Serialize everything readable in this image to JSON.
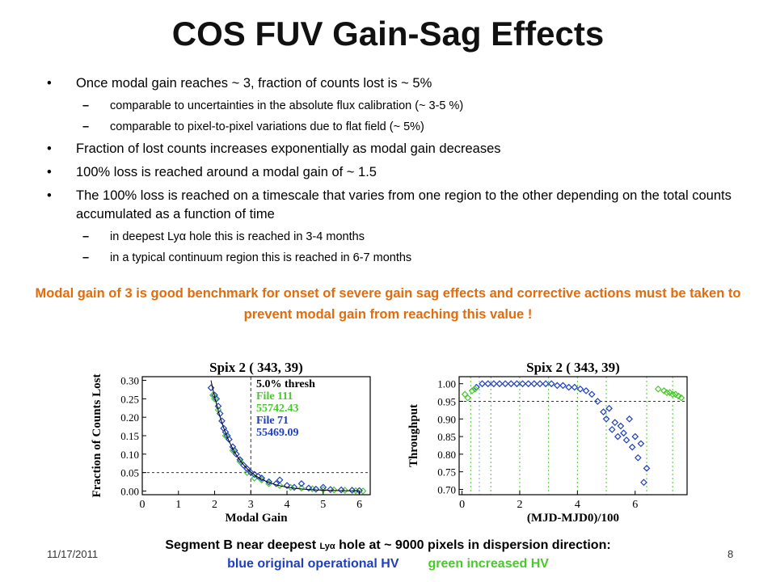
{
  "slide": {
    "title": "COS FUV Gain-Sag Effects",
    "date": "11/17/2011",
    "page": "8",
    "bullets": [
      {
        "text": "Once modal gain reaches ~ 3, fraction of counts lost is ~ 5%",
        "level": 1
      },
      {
        "text": "comparable to uncertainties in the absolute flux calibration (~ 3-5 %)",
        "level": 2
      },
      {
        "text": "comparable to pixel-to-pixel variations due to flat field (~ 5%)",
        "level": 2
      },
      {
        "text": "Fraction of lost counts increases exponentially as modal gain decreases",
        "level": 1
      },
      {
        "text": "100% loss is reached around a modal gain of ~ 1.5",
        "level": 1
      },
      {
        "text": "The 100% loss is reached on a timescale that varies from one region to the other depending on the total counts accumulated as a function of time",
        "level": 1
      },
      {
        "text": "in deepest Lyα hole this is reached in 3-4 months",
        "level": 2
      },
      {
        "text": "in a typical continuum region this is reached in 6-7 months",
        "level": 2
      }
    ],
    "highlight": "Modal gain of 3 is good benchmark for onset of severe gain sag effects and corrective actions must be taken to prevent modal gain from reaching this value !",
    "caption": {
      "line1_a": "Segment B near deepest ",
      "line1_lya": "Lyα",
      "line1_b": " hole at ~ 9000 pixels in dispersion direction:",
      "blue_text": "blue original operational HV",
      "green_text": "green increased HV"
    },
    "colors": {
      "highlight": "#e36c0a",
      "blue": "#1f3fbf",
      "green": "#49c92c"
    }
  },
  "chart_data": [
    {
      "type": "scatter",
      "title": "Spix 2 (   343,   39)",
      "xlabel": "Modal Gain",
      "ylabel": "Fraction of Counts Lost",
      "xlim": [
        0,
        6.3
      ],
      "ylim": [
        -0.01,
        0.31
      ],
      "xticks": [
        "0",
        "1",
        "2",
        "3",
        "4",
        "5",
        "6"
      ],
      "yticks": [
        "0.00",
        "0.05",
        "0.10",
        "0.15",
        "0.20",
        "0.25",
        "0.30"
      ],
      "legend": [
        "5.0% thresh",
        "File 111",
        "55742.43",
        "File 71",
        "55469.09"
      ],
      "threshold": {
        "y": 0.05,
        "x": 3.0
      },
      "series": [
        {
          "name": "File 111",
          "color": "#49c92c",
          "points": [
            [
              1.95,
              0.26
            ],
            [
              2.0,
              0.25
            ],
            [
              2.1,
              0.22
            ],
            [
              2.3,
              0.15
            ],
            [
              2.5,
              0.11
            ],
            [
              2.7,
              0.08
            ],
            [
              2.9,
              0.05
            ],
            [
              3.1,
              0.035
            ],
            [
              3.3,
              0.03
            ],
            [
              3.5,
              0.02
            ],
            [
              3.8,
              0.015
            ],
            [
              4.1,
              0.01
            ],
            [
              4.4,
              0.008
            ],
            [
              4.7,
              0.006
            ],
            [
              5.0,
              0.004
            ],
            [
              5.3,
              0.003
            ],
            [
              5.6,
              0.002
            ],
            [
              5.9,
              0.001
            ],
            [
              6.1,
              0.0
            ]
          ]
        },
        {
          "name": "File 71",
          "color": "#1f3fbf",
          "points": [
            [
              1.9,
              0.28
            ],
            [
              2.0,
              0.26
            ],
            [
              2.05,
              0.25
            ],
            [
              2.1,
              0.23
            ],
            [
              2.15,
              0.21
            ],
            [
              2.2,
              0.19
            ],
            [
              2.25,
              0.17
            ],
            [
              2.3,
              0.16
            ],
            [
              2.35,
              0.15
            ],
            [
              2.4,
              0.14
            ],
            [
              2.5,
              0.12
            ],
            [
              2.55,
              0.11
            ],
            [
              2.6,
              0.1
            ],
            [
              2.7,
              0.085
            ],
            [
              2.8,
              0.07
            ],
            [
              2.9,
              0.06
            ],
            [
              3.0,
              0.05
            ],
            [
              3.1,
              0.045
            ],
            [
              3.2,
              0.04
            ],
            [
              3.3,
              0.035
            ],
            [
              3.5,
              0.025
            ],
            [
              3.7,
              0.02
            ],
            [
              3.8,
              0.03
            ],
            [
              4.0,
              0.015
            ],
            [
              4.2,
              0.01
            ],
            [
              4.4,
              0.02
            ],
            [
              4.6,
              0.008
            ],
            [
              4.8,
              0.005
            ],
            [
              5.0,
              0.01
            ],
            [
              5.2,
              0.004
            ],
            [
              5.5,
              0.003
            ],
            [
              5.8,
              0.002
            ],
            [
              6.0,
              0.001
            ]
          ]
        }
      ]
    },
    {
      "type": "scatter",
      "title": "Spix 2 (   343,   39)",
      "xlabel": "(MJD-MJD0)/100",
      "ylabel": "Throughput",
      "xlim": [
        -0.1,
        7.8
      ],
      "ylim": [
        0.685,
        1.02
      ],
      "xticks": [
        "0",
        "2",
        "4",
        "6"
      ],
      "yticks": [
        "0.70",
        "0.75",
        "0.80",
        "0.85",
        "0.90",
        "0.95",
        "1.00"
      ],
      "threshold": {
        "y": 0.95
      },
      "vlines_green": [
        0.3,
        1.0,
        2.0,
        3.0,
        4.0,
        5.0,
        6.4,
        7.3
      ],
      "vlines_blue": [
        0.6
      ],
      "series": [
        {
          "name": "File 71",
          "color": "#1f3fbf",
          "points": [
            [
              0.5,
              0.99
            ],
            [
              0.7,
              1.0
            ],
            [
              0.9,
              1.0
            ],
            [
              1.1,
              1.0
            ],
            [
              1.3,
              1.0
            ],
            [
              1.5,
              1.0
            ],
            [
              1.7,
              1.0
            ],
            [
              1.9,
              1.0
            ],
            [
              2.1,
              1.0
            ],
            [
              2.3,
              1.0
            ],
            [
              2.5,
              1.0
            ],
            [
              2.7,
              1.0
            ],
            [
              2.9,
              1.0
            ],
            [
              3.1,
              1.0
            ],
            [
              3.3,
              0.995
            ],
            [
              3.5,
              0.995
            ],
            [
              3.7,
              0.99
            ],
            [
              3.9,
              0.99
            ],
            [
              4.1,
              0.985
            ],
            [
              4.3,
              0.98
            ],
            [
              4.5,
              0.97
            ],
            [
              4.7,
              0.95
            ],
            [
              4.9,
              0.92
            ],
            [
              5.0,
              0.9
            ],
            [
              5.1,
              0.93
            ],
            [
              5.2,
              0.87
            ],
            [
              5.3,
              0.89
            ],
            [
              5.4,
              0.85
            ],
            [
              5.5,
              0.88
            ],
            [
              5.6,
              0.86
            ],
            [
              5.7,
              0.84
            ],
            [
              5.8,
              0.9
            ],
            [
              5.9,
              0.82
            ],
            [
              6.0,
              0.85
            ],
            [
              6.1,
              0.79
            ],
            [
              6.2,
              0.83
            ],
            [
              6.3,
              0.72
            ],
            [
              6.4,
              0.76
            ]
          ]
        },
        {
          "name": "File 111",
          "color": "#49c92c",
          "points": [
            [
              0.1,
              0.97
            ],
            [
              0.2,
              0.96
            ],
            [
              0.35,
              0.98
            ],
            [
              0.45,
              0.985
            ],
            [
              6.8,
              0.985
            ],
            [
              7.0,
              0.98
            ],
            [
              7.1,
              0.975
            ],
            [
              7.2,
              0.975
            ],
            [
              7.3,
              0.97
            ],
            [
              7.4,
              0.97
            ],
            [
              7.5,
              0.965
            ],
            [
              7.6,
              0.96
            ]
          ]
        }
      ]
    }
  ]
}
